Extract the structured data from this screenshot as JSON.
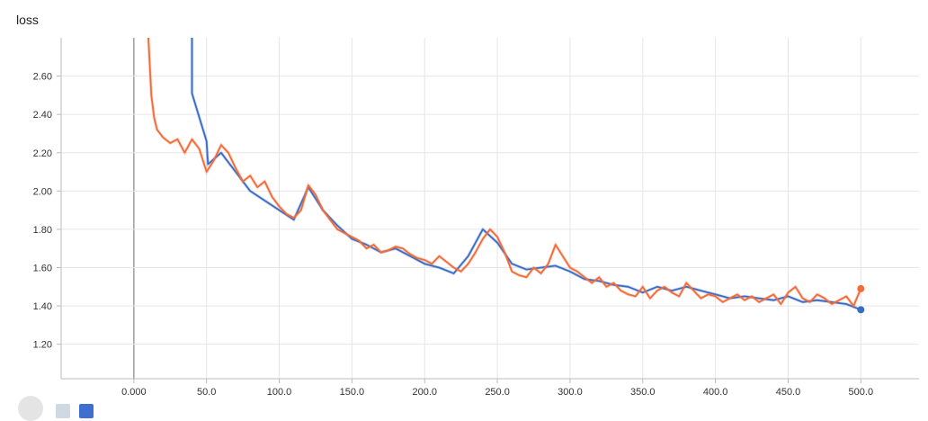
{
  "chart_data": {
    "type": "line",
    "title": "loss",
    "xlabel": "",
    "ylabel": "",
    "xlim": [
      -50,
      540
    ],
    "ylim": [
      1.02,
      2.8
    ],
    "x_ticks": [
      0,
      50,
      100,
      150,
      200,
      250,
      300,
      350,
      400,
      450,
      500
    ],
    "x_tick_labels": [
      "0.000",
      "50.0",
      "100.0",
      "150.0",
      "200.0",
      "250.0",
      "300.0",
      "350.0",
      "400.0",
      "450.0",
      "500.0"
    ],
    "y_ticks": [
      1.2,
      1.4,
      1.6,
      1.8,
      2.0,
      2.2,
      2.4,
      2.6
    ],
    "y_tick_labels": [
      "1.20",
      "1.40",
      "1.60",
      "1.80",
      "2.00",
      "2.20",
      "2.40",
      "2.60"
    ],
    "grid": true,
    "series": [
      {
        "color": "#3b6cc4",
        "x": [
          40,
          40,
          50,
          51,
          60,
          70,
          80,
          90,
          100,
          110,
          120,
          130,
          140,
          150,
          160,
          170,
          180,
          190,
          200,
          210,
          220,
          230,
          240,
          250,
          260,
          270,
          280,
          290,
          300,
          310,
          320,
          330,
          340,
          350,
          360,
          370,
          380,
          390,
          400,
          410,
          420,
          430,
          440,
          450,
          460,
          470,
          480,
          490,
          500
        ],
        "y": [
          2.85,
          2.51,
          2.26,
          2.14,
          2.2,
          2.1,
          2.0,
          1.95,
          1.9,
          1.85,
          2.02,
          1.9,
          1.82,
          1.75,
          1.72,
          1.68,
          1.7,
          1.66,
          1.62,
          1.6,
          1.57,
          1.66,
          1.8,
          1.73,
          1.62,
          1.59,
          1.6,
          1.61,
          1.58,
          1.54,
          1.53,
          1.51,
          1.5,
          1.47,
          1.5,
          1.48,
          1.5,
          1.48,
          1.46,
          1.44,
          1.45,
          1.44,
          1.43,
          1.45,
          1.42,
          1.43,
          1.42,
          1.41,
          1.38
        ]
      },
      {
        "color": "#f26b38",
        "x": [
          10,
          12,
          14,
          16,
          18,
          20,
          25,
          30,
          35,
          40,
          45,
          50,
          55,
          60,
          65,
          70,
          75,
          80,
          85,
          90,
          95,
          100,
          105,
          110,
          115,
          120,
          125,
          130,
          135,
          140,
          145,
          150,
          155,
          160,
          165,
          170,
          175,
          180,
          185,
          190,
          195,
          200,
          205,
          210,
          215,
          220,
          225,
          230,
          235,
          240,
          245,
          250,
          255,
          260,
          265,
          270,
          275,
          280,
          285,
          290,
          295,
          300,
          305,
          310,
          315,
          320,
          325,
          330,
          335,
          340,
          345,
          350,
          355,
          360,
          365,
          370,
          375,
          380,
          385,
          390,
          395,
          400,
          405,
          410,
          415,
          420,
          425,
          430,
          435,
          440,
          445,
          450,
          455,
          460,
          465,
          470,
          475,
          480,
          485,
          490,
          495,
          500
        ],
        "y": [
          2.8,
          2.5,
          2.38,
          2.32,
          2.3,
          2.28,
          2.25,
          2.27,
          2.2,
          2.27,
          2.22,
          2.1,
          2.16,
          2.24,
          2.2,
          2.12,
          2.05,
          2.08,
          2.02,
          2.05,
          1.97,
          1.92,
          1.88,
          1.86,
          1.9,
          2.03,
          1.98,
          1.9,
          1.85,
          1.8,
          1.78,
          1.76,
          1.74,
          1.7,
          1.72,
          1.68,
          1.69,
          1.71,
          1.7,
          1.67,
          1.65,
          1.64,
          1.62,
          1.66,
          1.63,
          1.6,
          1.58,
          1.62,
          1.68,
          1.75,
          1.8,
          1.76,
          1.68,
          1.58,
          1.56,
          1.55,
          1.6,
          1.57,
          1.62,
          1.72,
          1.66,
          1.6,
          1.58,
          1.55,
          1.52,
          1.55,
          1.5,
          1.52,
          1.48,
          1.46,
          1.45,
          1.5,
          1.44,
          1.48,
          1.5,
          1.47,
          1.45,
          1.52,
          1.48,
          1.44,
          1.46,
          1.45,
          1.42,
          1.44,
          1.46,
          1.43,
          1.45,
          1.42,
          1.44,
          1.46,
          1.41,
          1.47,
          1.5,
          1.44,
          1.42,
          1.46,
          1.44,
          1.41,
          1.43,
          1.45,
          1.4,
          1.49
        ]
      }
    ]
  }
}
